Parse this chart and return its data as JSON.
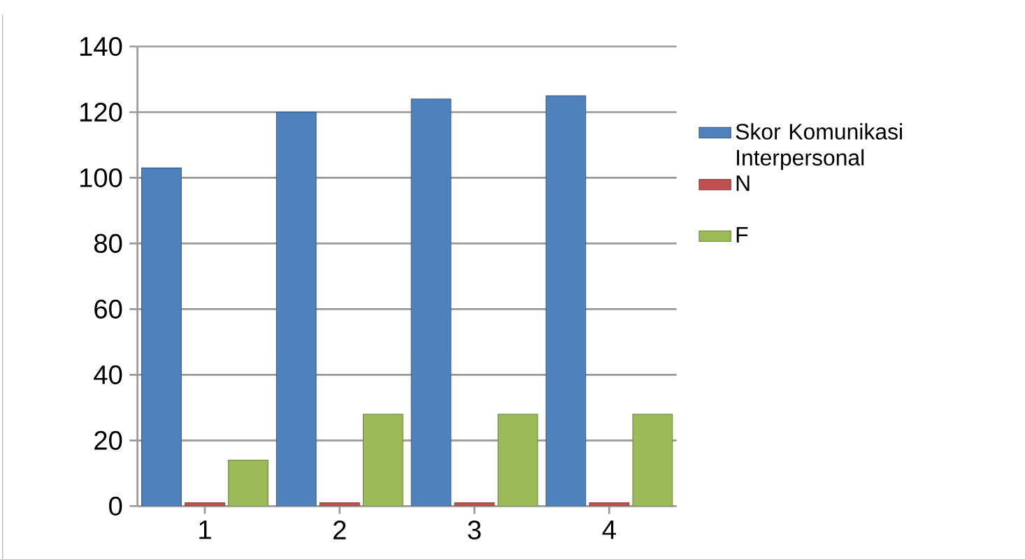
{
  "chart_data": {
    "type": "bar",
    "categories": [
      "1",
      "2",
      "3",
      "4"
    ],
    "series": [
      {
        "name": "Skor Komunikasi Interpersonal",
        "color": "#4f81bd",
        "values": [
          103,
          120,
          124,
          125
        ]
      },
      {
        "name": "N",
        "color": "#c0504d",
        "values": [
          1,
          1,
          1,
          1
        ]
      },
      {
        "name": "F",
        "color": "#9bbb59",
        "values": [
          14,
          28,
          28,
          28
        ]
      }
    ],
    "ylim": [
      0,
      140
    ],
    "yticks": [
      0,
      20,
      40,
      60,
      80,
      100,
      120,
      140
    ],
    "grid": "y",
    "legend": "right"
  }
}
